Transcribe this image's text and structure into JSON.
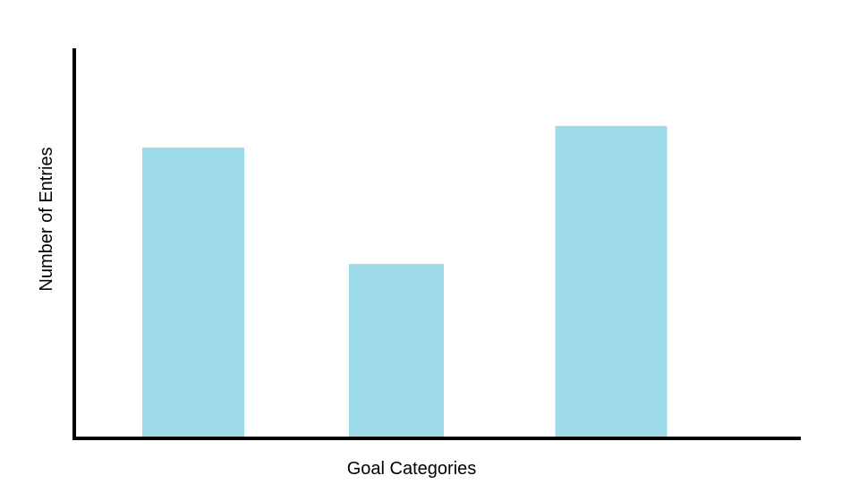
{
  "chart_data": {
    "type": "bar",
    "title": "",
    "xlabel": "Goal Categories",
    "ylabel": "Number of Entries",
    "categories": [
      "",
      "",
      ""
    ],
    "values": [
      6.7,
      4.0,
      7.2
    ],
    "ylim": [
      0,
      9
    ],
    "grid": false,
    "legend": "none",
    "colors": {
      "bar": "#9cd9e9",
      "axis": "#000000",
      "background": "#ffffff"
    }
  }
}
